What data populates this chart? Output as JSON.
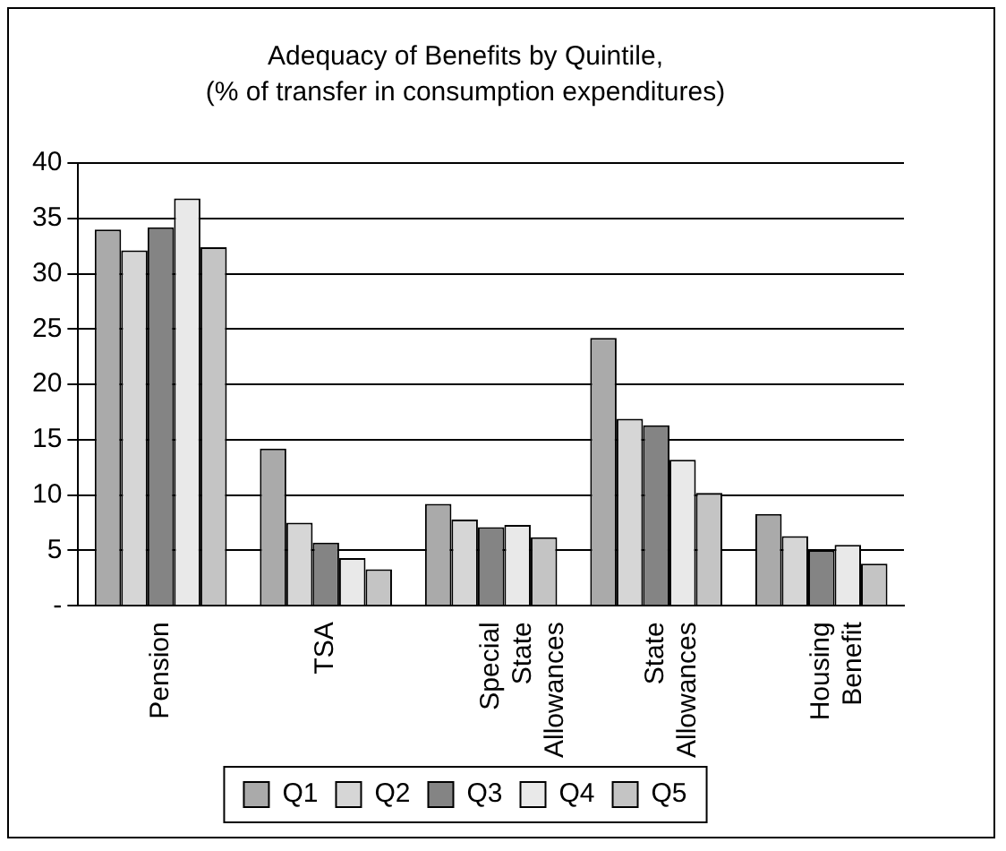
{
  "chart_data": {
    "type": "bar",
    "title": "Adequacy of Benefits by Quintile,",
    "subtitle": "(% of transfer in consumption expenditures)",
    "categories": [
      "Pension",
      "TSA",
      "Special State Allowances",
      "State Allowances",
      "Housing Benefit"
    ],
    "series": [
      {
        "name": "Q1",
        "color": "#aaaaaa",
        "values": [
          34.0,
          14.2,
          9.2,
          24.2,
          8.3
        ]
      },
      {
        "name": "Q2",
        "color": "#d6d6d6",
        "values": [
          32.1,
          7.5,
          7.8,
          16.9,
          6.3
        ]
      },
      {
        "name": "Q3",
        "color": "#848484",
        "values": [
          34.2,
          5.7,
          7.1,
          16.3,
          5.0
        ]
      },
      {
        "name": "Q4",
        "color": "#e9e9e9",
        "values": [
          36.8,
          4.3,
          7.3,
          13.2,
          5.5
        ]
      },
      {
        "name": "Q5",
        "color": "#c4c4c4",
        "values": [
          32.4,
          3.3,
          6.2,
          10.2,
          3.8
        ]
      }
    ],
    "ylim": [
      0,
      40
    ],
    "yticks": [
      {
        "value": 0,
        "label": "-"
      },
      5,
      10,
      15,
      20,
      25,
      30,
      35,
      40
    ],
    "grid": "y",
    "legend": "bottom"
  }
}
